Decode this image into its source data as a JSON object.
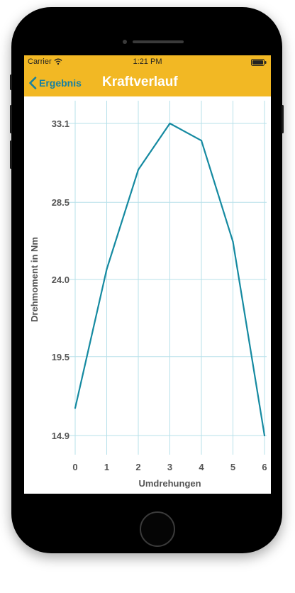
{
  "status_bar": {
    "carrier": "Carrier",
    "time": "1:21 PM"
  },
  "nav": {
    "back_label": "Ergebnis",
    "title": "Kraftverlauf"
  },
  "colors": {
    "bar_yellow": "#f2b824",
    "line": "#158aa1",
    "grid": "#b7e0ea",
    "back_text": "#1780a0"
  },
  "chart_data": {
    "type": "line",
    "xlabel": "Umdrehungen",
    "ylabel": "Drehmoment in Nm",
    "x": [
      0,
      1,
      2,
      3,
      4,
      5,
      6
    ],
    "y": [
      16.5,
      24.6,
      30.4,
      33.1,
      32.1,
      26.2,
      14.9
    ],
    "x_ticks": [
      "0",
      "1",
      "2",
      "3",
      "4",
      "5",
      "6"
    ],
    "y_ticks": [
      "14.9",
      "19.5",
      "24.0",
      "28.5",
      "33.1"
    ],
    "y_tick_values": [
      14.9,
      19.5,
      24.0,
      28.5,
      33.1
    ],
    "grid": true
  }
}
